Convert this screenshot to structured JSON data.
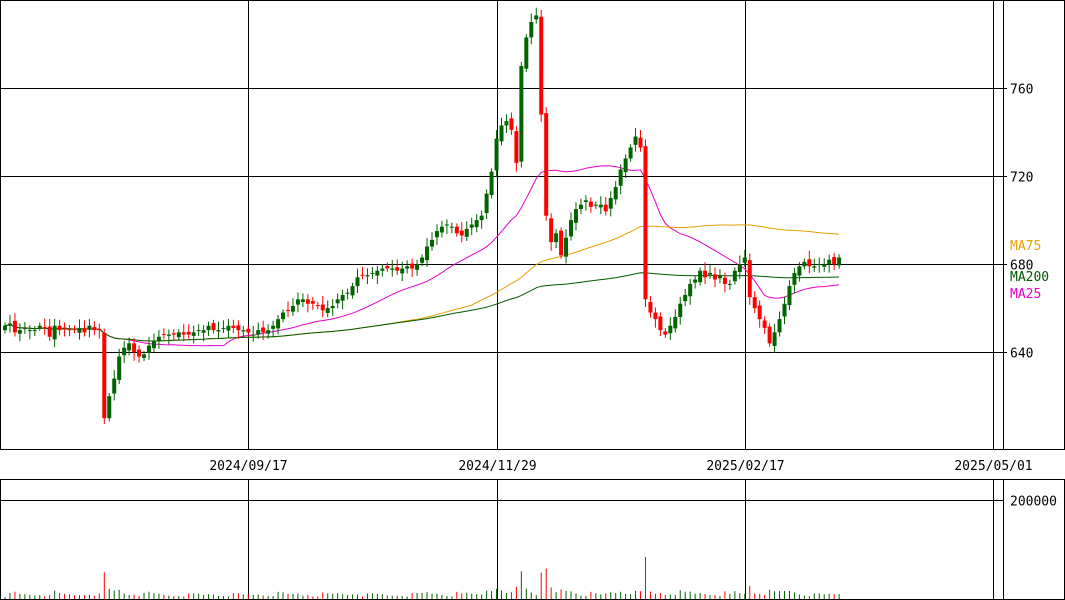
{
  "chart_data": {
    "type": "candlestick",
    "title": "",
    "price_axis": {
      "ticks": [
        640,
        680,
        720,
        760
      ],
      "tick_labels": [
        "640",
        "680",
        "720",
        "760"
      ],
      "range": [
        596,
        800
      ]
    },
    "volume_axis": {
      "ticks": [
        200000
      ],
      "tick_labels": [
        "200000"
      ],
      "range": [
        0,
        243000
      ]
    },
    "date_ticks": [
      {
        "label": "2024/09/17",
        "index": 49
      },
      {
        "label": "2024/11/29",
        "index": 99
      },
      {
        "label": "2025/02/17",
        "index": 149
      },
      {
        "label": "2025/05/01",
        "index": 199
      }
    ],
    "index_range": [
      0,
      200
    ],
    "grid": true,
    "colors": {
      "up": "#006400",
      "down": "#ff0000",
      "ma25": "#e600c8",
      "ma75": "#e6a000",
      "ma200": "#005a00",
      "grid": "#000000"
    },
    "legend": [
      {
        "name": "MA75",
        "color": "#e6a000",
        "value": 690
      },
      {
        "name": "MA200",
        "color": "#005a00",
        "value": 675
      },
      {
        "name": "MA25",
        "color": "#e600c8",
        "value": 664
      }
    ],
    "close": [
      652,
      653,
      649,
      650,
      651,
      650,
      650,
      652,
      651,
      647,
      652,
      650,
      651,
      650,
      650,
      651,
      649,
      652,
      650,
      650,
      610,
      620,
      628,
      638,
      642,
      644,
      640,
      638,
      639,
      643,
      645,
      647,
      648,
      648,
      648,
      649,
      648,
      648,
      649,
      650,
      650,
      652,
      650,
      650,
      651,
      652,
      651,
      650,
      650,
      649,
      648,
      650,
      649,
      650,
      652,
      655,
      658,
      659,
      661,
      664,
      664,
      662,
      662,
      661,
      659,
      660,
      661,
      664,
      666,
      667,
      670,
      674,
      675,
      675,
      676,
      677,
      678,
      678,
      678,
      677,
      678,
      679,
      678,
      680,
      683,
      688,
      691,
      695,
      697,
      698,
      697,
      694,
      693,
      696,
      698,
      700,
      702,
      712,
      722,
      737,
      743,
      745,
      741,
      726,
      770,
      783,
      790,
      793,
      748,
      702,
      690,
      694,
      684,
      692,
      700,
      705,
      707,
      709,
      706,
      707,
      707,
      704,
      710,
      715,
      723,
      728,
      733,
      738,
      733,
      664,
      658,
      655,
      650,
      648,
      652,
      656,
      662,
      666,
      671,
      673,
      677,
      674,
      676,
      673,
      675,
      671,
      671,
      677,
      680,
      683,
      665,
      660,
      655,
      651,
      644,
      649,
      655,
      662,
      670,
      676,
      679,
      681,
      679,
      679,
      680,
      680,
      682,
      680,
      683
    ]
  }
}
